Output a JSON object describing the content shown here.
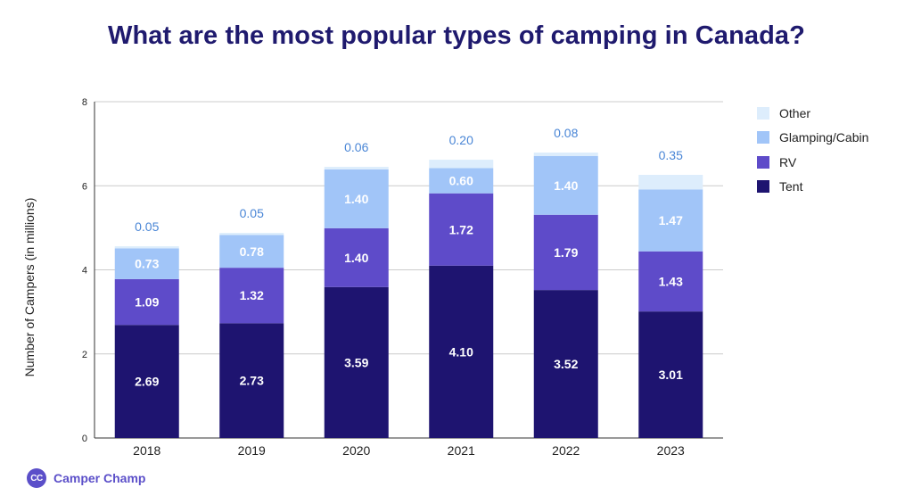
{
  "chart_data": {
    "type": "bar",
    "stacked": true,
    "title": "What are the most popular types of camping in Canada?",
    "xlabel": "",
    "ylabel": "Number of Campers (in millions)",
    "ylim": [
      0,
      8
    ],
    "yticks": [
      0,
      2,
      4,
      6,
      8
    ],
    "grid": true,
    "legend_position": "right",
    "categories": [
      "2018",
      "2019",
      "2020",
      "2021",
      "2022",
      "2023"
    ],
    "series": [
      {
        "name": "Tent",
        "color": "#1e1470",
        "values": [
          2.69,
          2.73,
          3.59,
          4.1,
          3.52,
          3.01
        ]
      },
      {
        "name": "RV",
        "color": "#5e4bc9",
        "values": [
          1.09,
          1.32,
          1.4,
          1.72,
          1.79,
          1.43
        ]
      },
      {
        "name": "Glamping/Cabin",
        "color": "#a1c5f8",
        "values": [
          0.73,
          0.78,
          1.4,
          0.6,
          1.4,
          1.47
        ]
      },
      {
        "name": "Other",
        "color": "#ddedfc",
        "values": [
          0.05,
          0.05,
          0.06,
          0.2,
          0.08,
          0.35
        ]
      }
    ],
    "value_labels": [
      [
        "2.69",
        "2.73",
        "3.59",
        "4.10",
        "3.52",
        "3.01"
      ],
      [
        "1.09",
        "1.32",
        "1.40",
        "1.72",
        "1.79",
        "1.43"
      ],
      [
        "0.73",
        "0.78",
        "1.40",
        "0.60",
        "1.40",
        "1.47"
      ],
      [
        "0.05",
        "0.05",
        "0.06",
        "0.20",
        "0.08",
        "0.35"
      ]
    ],
    "legend_order": [
      "Other",
      "Glamping/Cabin",
      "RV",
      "Tent"
    ]
  },
  "brand": {
    "mark": "CC",
    "name": "Camper Champ",
    "color": "#5b4fc9"
  },
  "colors": {
    "title": "#1f1a6e",
    "label_dark": "#ffffff",
    "label_light": "#ffffff",
    "other_label": "#4a86d6"
  }
}
